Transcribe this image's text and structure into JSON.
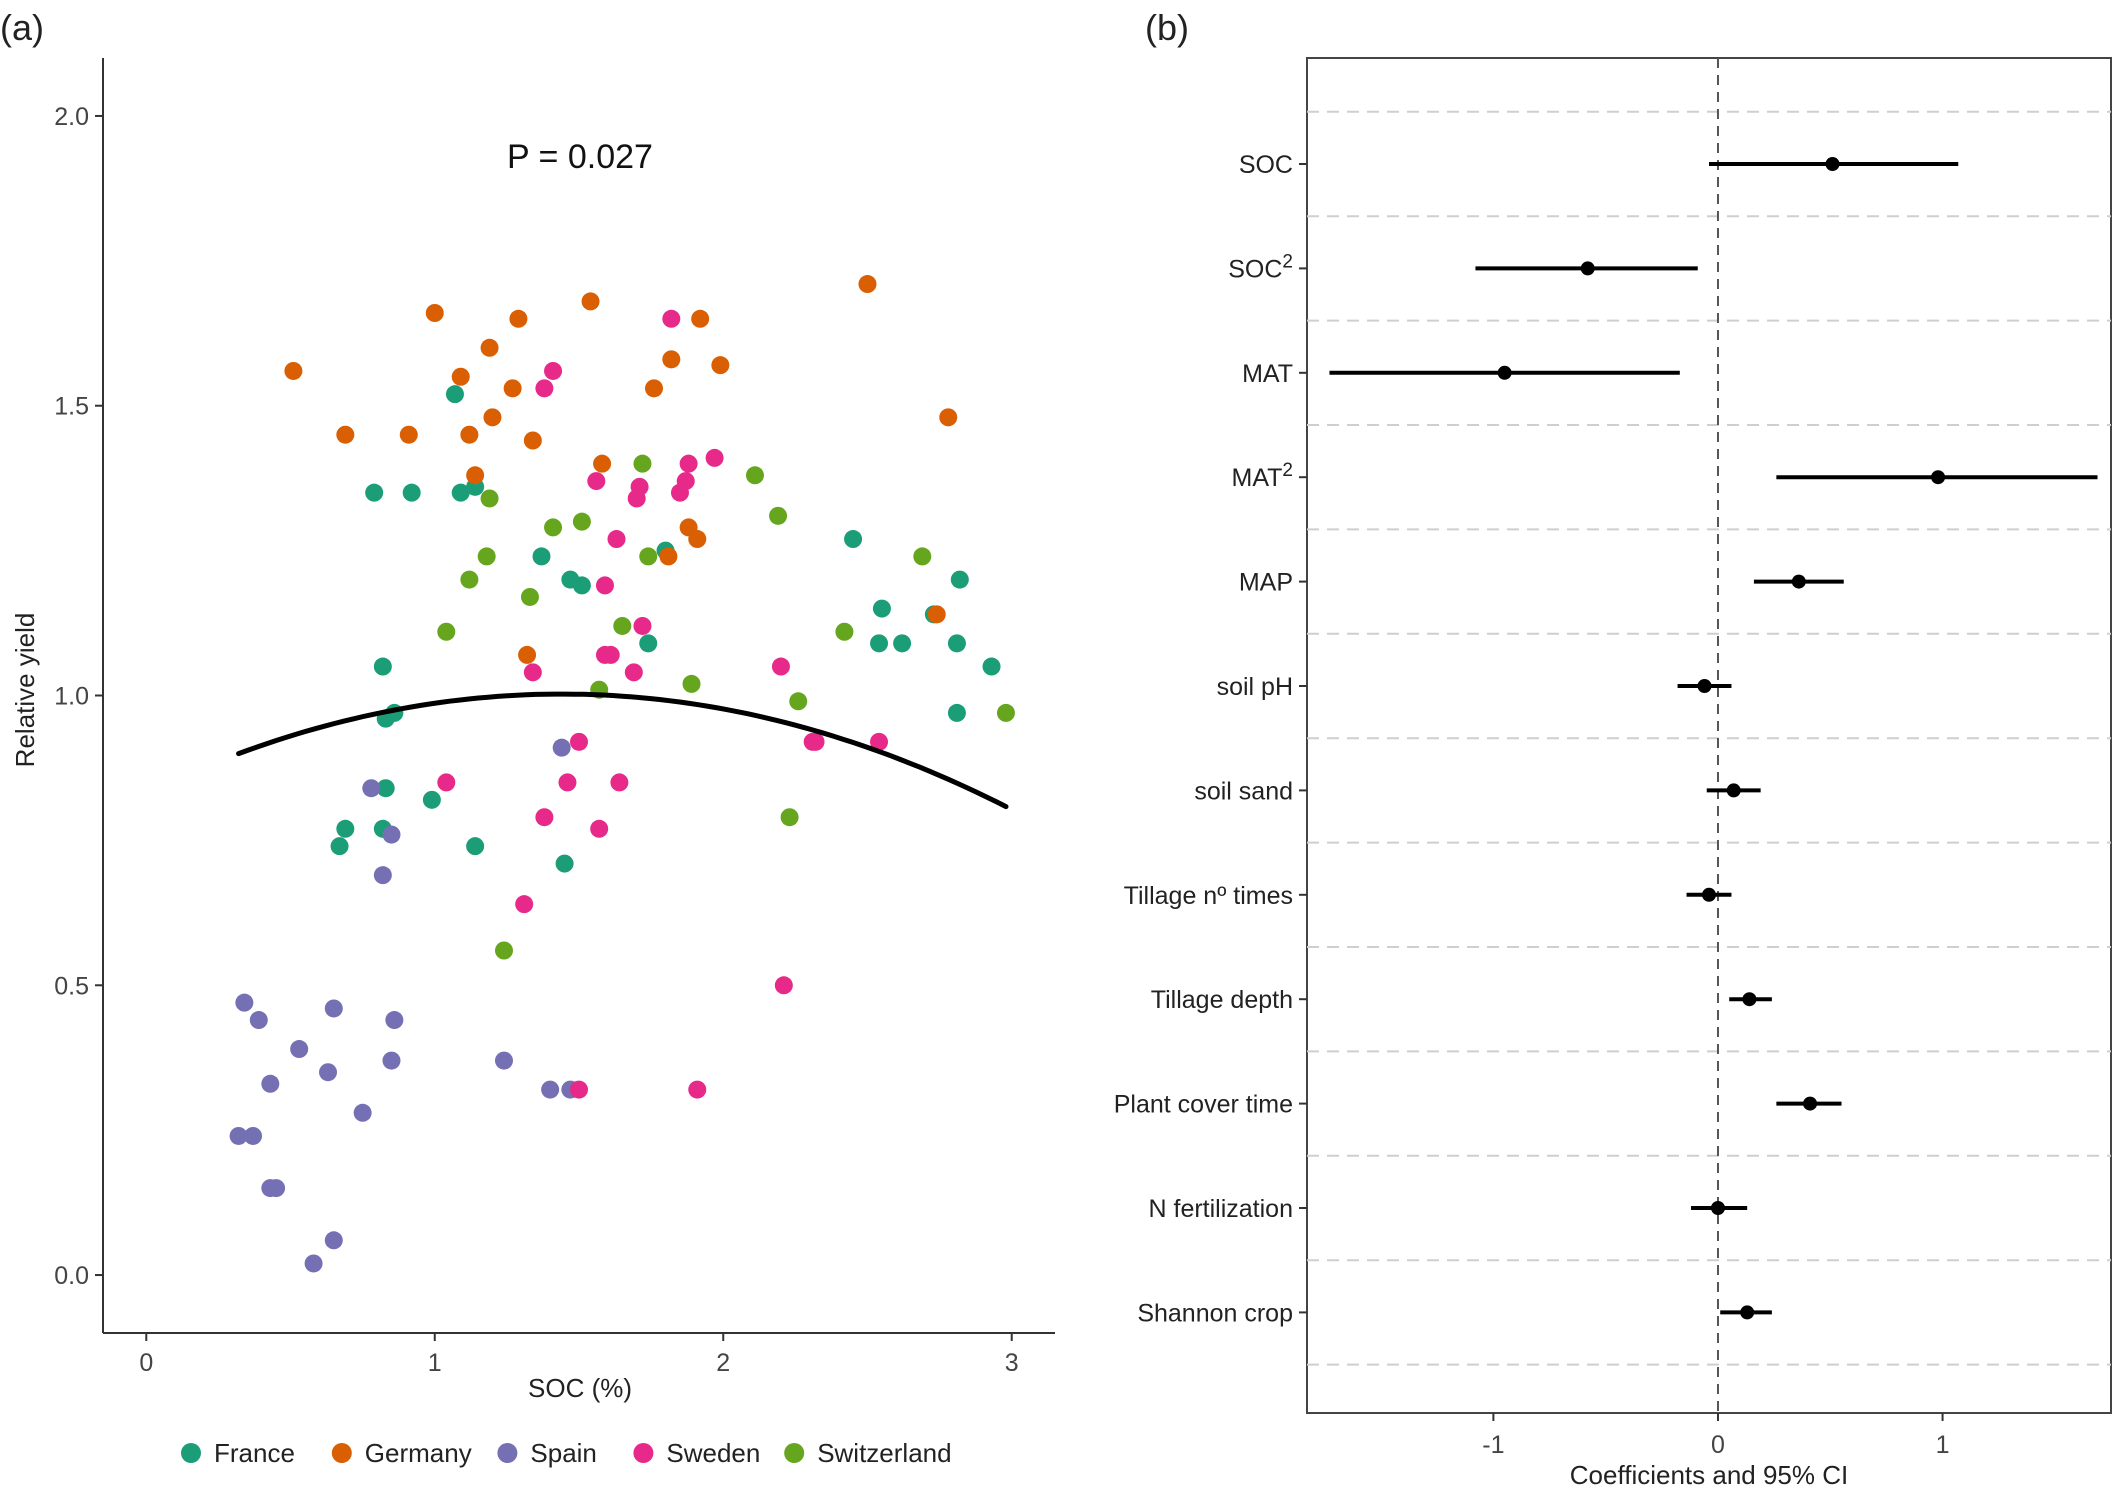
{
  "chart_data": [
    {
      "panel_label": "(a)",
      "type": "scatter",
      "annotation": "P = 0.027",
      "xlabel": "SOC (%)",
      "ylabel": "Relative yield",
      "xlim": [
        -0.15,
        3.15
      ],
      "ylim": [
        -0.1,
        2.1
      ],
      "x_ticks": [
        0,
        1,
        2,
        3
      ],
      "x_tick_labels": [
        "0",
        "1",
        "2",
        "3"
      ],
      "y_ticks": [
        0.0,
        0.5,
        1.0,
        1.5,
        2.0
      ],
      "y_tick_labels": [
        "0.0",
        "0.5",
        "1.0",
        "1.5",
        "2.0"
      ],
      "grid": false,
      "legend_position": "bottom",
      "fit_curve": {
        "type": "quadratic",
        "x_range": [
          0.32,
          2.98
        ],
        "a": -0.0819,
        "b": 0.2359,
        "c": 0.8326
      },
      "series": [
        {
          "name": "France",
          "color": "#1b9e77",
          "points": [
            [
              0.79,
              1.35
            ],
            [
              0.92,
              1.35
            ],
            [
              1.07,
              1.52
            ],
            [
              1.09,
              1.35
            ],
            [
              1.14,
              1.36
            ],
            [
              0.82,
              1.05
            ],
            [
              0.86,
              0.97
            ],
            [
              0.83,
              0.96
            ],
            [
              0.83,
              0.84
            ],
            [
              0.69,
              0.77
            ],
            [
              0.67,
              0.74
            ],
            [
              0.82,
              0.77
            ],
            [
              0.99,
              0.82
            ],
            [
              1.14,
              0.74
            ],
            [
              1.37,
              1.24
            ],
            [
              1.47,
              1.2
            ],
            [
              1.51,
              1.19
            ],
            [
              1.45,
              0.71
            ],
            [
              1.74,
              1.09
            ],
            [
              1.8,
              1.25
            ],
            [
              2.45,
              1.27
            ],
            [
              2.55,
              1.15
            ],
            [
              2.54,
              1.09
            ],
            [
              2.62,
              1.09
            ],
            [
              2.82,
              1.2
            ],
            [
              2.81,
              1.09
            ],
            [
              2.73,
              1.14
            ],
            [
              2.81,
              0.97
            ],
            [
              2.93,
              1.05
            ]
          ]
        },
        {
          "name": "Germany",
          "color": "#d95f02",
          "points": [
            [
              0.51,
              1.56
            ],
            [
              0.69,
              1.45
            ],
            [
              0.91,
              1.45
            ],
            [
              1.0,
              1.66
            ],
            [
              1.09,
              1.55
            ],
            [
              1.12,
              1.45
            ],
            [
              1.14,
              1.38
            ],
            [
              1.19,
              1.6
            ],
            [
              1.2,
              1.48
            ],
            [
              1.27,
              1.53
            ],
            [
              1.29,
              1.65
            ],
            [
              1.34,
              1.44
            ],
            [
              1.32,
              1.07
            ],
            [
              1.54,
              1.68
            ],
            [
              1.58,
              1.4
            ],
            [
              1.76,
              1.53
            ],
            [
              1.82,
              1.58
            ],
            [
              1.88,
              1.29
            ],
            [
              1.91,
              1.27
            ],
            [
              1.92,
              1.65
            ],
            [
              1.99,
              1.57
            ],
            [
              1.81,
              1.24
            ],
            [
              2.5,
              1.71
            ],
            [
              2.74,
              1.14
            ],
            [
              2.78,
              1.48
            ]
          ]
        },
        {
          "name": "Spain",
          "color": "#7570b3",
          "points": [
            [
              0.34,
              0.47
            ],
            [
              0.39,
              0.44
            ],
            [
              0.32,
              0.24
            ],
            [
              0.37,
              0.24
            ],
            [
              0.43,
              0.33
            ],
            [
              0.43,
              0.15
            ],
            [
              0.45,
              0.15
            ],
            [
              0.53,
              0.39
            ],
            [
              0.63,
              0.35
            ],
            [
              0.65,
              0.46
            ],
            [
              0.58,
              0.02
            ],
            [
              0.65,
              0.06
            ],
            [
              0.75,
              0.28
            ],
            [
              0.78,
              0.84
            ],
            [
              0.82,
              0.69
            ],
            [
              0.85,
              0.76
            ],
            [
              0.86,
              0.44
            ],
            [
              0.85,
              0.37
            ],
            [
              1.24,
              0.37
            ],
            [
              1.4,
              0.32
            ],
            [
              1.44,
              0.91
            ],
            [
              1.47,
              0.32
            ]
          ]
        },
        {
          "name": "Sweden",
          "color": "#e7298a",
          "points": [
            [
              1.04,
              0.85
            ],
            [
              1.31,
              0.64
            ],
            [
              1.34,
              1.04
            ],
            [
              1.38,
              1.53
            ],
            [
              1.38,
              0.79
            ],
            [
              1.41,
              1.56
            ],
            [
              1.46,
              0.85
            ],
            [
              1.5,
              0.92
            ],
            [
              1.5,
              0.32
            ],
            [
              1.56,
              1.37
            ],
            [
              1.57,
              0.77
            ],
            [
              1.59,
              1.19
            ],
            [
              1.59,
              1.07
            ],
            [
              1.61,
              1.07
            ],
            [
              1.63,
              1.27
            ],
            [
              1.64,
              0.85
            ],
            [
              1.69,
              1.04
            ],
            [
              1.7,
              1.34
            ],
            [
              1.71,
              1.36
            ],
            [
              1.72,
              1.12
            ],
            [
              1.82,
              1.65
            ],
            [
              1.85,
              1.35
            ],
            [
              1.87,
              1.37
            ],
            [
              1.88,
              1.4
            ],
            [
              1.97,
              1.41
            ],
            [
              1.91,
              0.32
            ],
            [
              2.2,
              1.05
            ],
            [
              2.21,
              0.5
            ],
            [
              2.31,
              0.92
            ],
            [
              2.32,
              0.92
            ],
            [
              2.54,
              0.92
            ]
          ]
        },
        {
          "name": "Switzerland",
          "color": "#66a61e",
          "points": [
            [
              1.04,
              1.11
            ],
            [
              1.12,
              1.2
            ],
            [
              1.18,
              1.24
            ],
            [
              1.19,
              1.34
            ],
            [
              1.33,
              1.17
            ],
            [
              1.41,
              1.29
            ],
            [
              1.51,
              1.3
            ],
            [
              1.57,
              1.01
            ],
            [
              1.65,
              1.12
            ],
            [
              1.72,
              1.4
            ],
            [
              1.74,
              1.24
            ],
            [
              1.89,
              1.02
            ],
            [
              2.11,
              1.38
            ],
            [
              2.19,
              1.31
            ],
            [
              2.23,
              0.79
            ],
            [
              2.26,
              0.99
            ],
            [
              1.24,
              0.56
            ],
            [
              2.42,
              1.11
            ],
            [
              2.69,
              1.24
            ],
            [
              2.98,
              0.97
            ]
          ]
        }
      ]
    },
    {
      "panel_label": "(b)",
      "type": "forest",
      "xlabel": "Coefficients and 95% CI",
      "xlim": [
        -1.83,
        1.75
      ],
      "x_ticks": [
        -1,
        0,
        1
      ],
      "x_tick_labels": [
        "-1",
        "0",
        "1"
      ],
      "reference_line": 0,
      "grid": "dashed horizontal",
      "point_color": "#000000",
      "rows": [
        {
          "label": "SOC",
          "superscript": "",
          "estimate": 0.51,
          "lower": -0.04,
          "upper": 1.07
        },
        {
          "label": "SOC",
          "superscript": "2",
          "estimate": -0.58,
          "lower": -1.08,
          "upper": -0.09
        },
        {
          "label": "MAT",
          "superscript": "",
          "estimate": -0.95,
          "lower": -1.73,
          "upper": -0.17
        },
        {
          "label": "MAT",
          "superscript": "2",
          "estimate": 0.98,
          "lower": 0.26,
          "upper": 1.69
        },
        {
          "label": "MAP",
          "superscript": "",
          "estimate": 0.36,
          "lower": 0.16,
          "upper": 0.56
        },
        {
          "label": "soil pH",
          "superscript": "",
          "estimate": -0.06,
          "lower": -0.18,
          "upper": 0.06
        },
        {
          "label": "soil sand",
          "superscript": "",
          "estimate": 0.07,
          "lower": -0.05,
          "upper": 0.19
        },
        {
          "label": "Tillage nº times",
          "superscript": "",
          "estimate": -0.04,
          "lower": -0.14,
          "upper": 0.06
        },
        {
          "label": "Tillage depth",
          "superscript": "",
          "estimate": 0.14,
          "lower": 0.05,
          "upper": 0.24
        },
        {
          "label": "Plant cover time",
          "superscript": "",
          "estimate": 0.41,
          "lower": 0.26,
          "upper": 0.55
        },
        {
          "label": "N fertilization",
          "superscript": "",
          "estimate": 0.0,
          "lower": -0.12,
          "upper": 0.13
        },
        {
          "label": "Shannon crop",
          "superscript": "",
          "estimate": 0.13,
          "lower": 0.01,
          "upper": 0.24
        }
      ]
    }
  ]
}
